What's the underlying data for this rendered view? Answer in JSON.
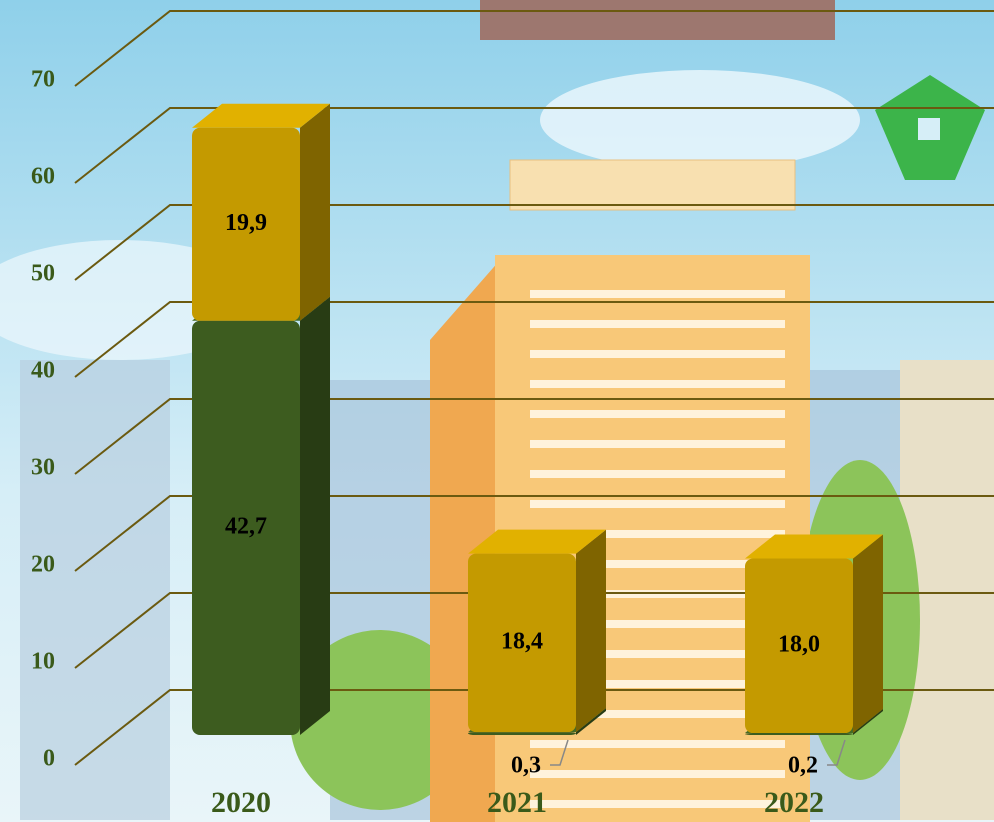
{
  "chart_data": {
    "type": "bar3d",
    "categories": [
      "2020",
      "2021",
      "2022"
    ],
    "series": [
      {
        "color": "#3d5c1f",
        "values": [
          42.7,
          0.3,
          0.2
        ],
        "value_labels": [
          "42,7",
          "0,3",
          "0,2"
        ]
      },
      {
        "color": "#c49a00",
        "values": [
          19.9,
          18.4,
          18.0
        ],
        "value_labels": [
          "19,9",
          "18,4",
          "18,0"
        ]
      }
    ],
    "ylim": [
      0,
      70
    ],
    "yticks": [
      0,
      10,
      20,
      30,
      40,
      50,
      60,
      70
    ],
    "grid": true,
    "stacked": true
  }
}
